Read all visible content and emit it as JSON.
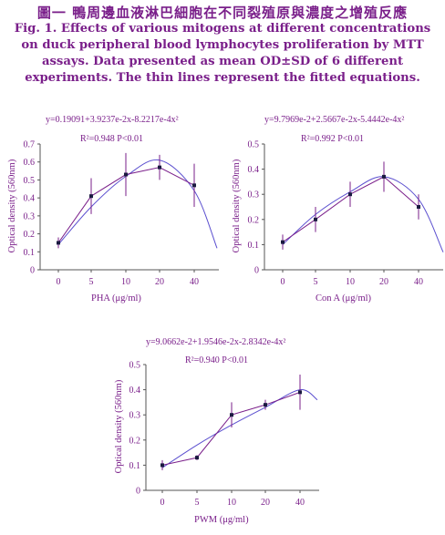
{
  "title_zh": "圖一 鴨周邊血液淋巴細胞在不同裂殖原與濃度之增殖反應",
  "title_en_lines": [
    "Fig. 1. Effects of various mitogens at different concentrations",
    "on duck peripheral blood lymphocytes proliferation by MTT",
    "assays. Data presented as mean OD±SD of 6 different",
    "experiments. The thin lines represent the fitted equations."
  ],
  "colors": {
    "text": "#7a1f8a",
    "axis": "#555555",
    "data_line": "#7a1f8a",
    "fit_line": "#5b4fcf"
  },
  "chart_data": [
    {
      "type": "line",
      "equation": "y=0.19091+3.9237e-2x-8.2217e-4x²",
      "r2": "R²=0.948 P<0.01",
      "xlabel": "PHA (μg/ml)",
      "ylabel": "Optical density (560nm)",
      "categories": [
        "0",
        "5",
        "10",
        "20",
        "40"
      ],
      "values": [
        0.15,
        0.41,
        0.53,
        0.57,
        0.47
      ],
      "errors": [
        0.03,
        0.1,
        0.12,
        0.07,
        0.12
      ],
      "fit_values": [
        0.14,
        0.35,
        0.52,
        0.61,
        0.44,
        0.12
      ],
      "ylim": [
        0,
        0.7
      ],
      "yticks": [
        "0",
        "0.1",
        "0.2",
        "0.3",
        "0.4",
        "0.5",
        "0.6",
        "0.7"
      ]
    },
    {
      "type": "line",
      "equation": "y=9.7969e-2+2.5667e-2x-5.4442e-4x²",
      "r2": "R²=0.992 P<0.01",
      "xlabel": "Con A (μg/ml)",
      "ylabel": "Optical density (560nm)",
      "categories": [
        "0",
        "5",
        "10",
        "20",
        "40"
      ],
      "values": [
        0.11,
        0.2,
        0.3,
        0.37,
        0.25
      ],
      "errors": [
        0.03,
        0.05,
        0.05,
        0.06,
        0.05
      ],
      "fit_values": [
        0.1,
        0.22,
        0.31,
        0.37,
        0.28,
        0.07
      ],
      "ylim": [
        0,
        0.5
      ],
      "yticks": [
        "0",
        "0.1",
        "0.2",
        "0.3",
        "0.4",
        "0.5"
      ]
    },
    {
      "type": "line",
      "equation": "y=9.0662e-2+1.9546e-2x-2.8342e-4x²",
      "r2": "R²=0.940 P<0.01",
      "xlabel": "PWM (μg/ml)",
      "ylabel": "Optical density (560nm)",
      "categories": [
        "0",
        "5",
        "10",
        "20",
        "40"
      ],
      "values": [
        0.1,
        0.13,
        0.3,
        0.34,
        0.39
      ],
      "errors": [
        0.02,
        0.01,
        0.05,
        0.02,
        0.07
      ],
      "fit_values": [
        0.09,
        0.18,
        0.26,
        0.33,
        0.4,
        0.36
      ],
      "ylim": [
        0,
        0.5
      ],
      "yticks": [
        "0",
        "0.1",
        "0.2",
        "0.3",
        "0.4",
        "0.5"
      ]
    }
  ]
}
